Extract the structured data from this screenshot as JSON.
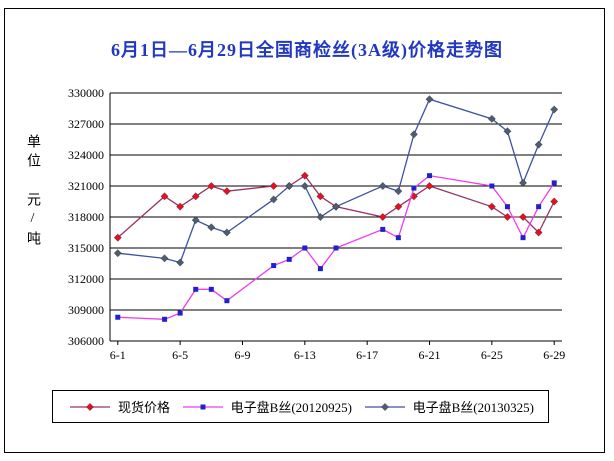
{
  "chart_data": {
    "type": "line",
    "title": "6月1日—6月29日全国商检丝(3A级)价格走势图",
    "title_color": "#2238c0",
    "ylabel": "单位 元/吨",
    "ylim": [
      306000,
      330000
    ],
    "yticks": [
      306000,
      309000,
      312000,
      315000,
      318000,
      321000,
      324000,
      327000,
      330000
    ],
    "xtick_labels": [
      "6-1",
      "6-5",
      "6-9",
      "6-13",
      "6-17",
      "6-21",
      "6-25",
      "6-29"
    ],
    "xtick_days": [
      1,
      5,
      9,
      13,
      17,
      21,
      25,
      29
    ],
    "days_total": 29,
    "grid": true,
    "legend_position": "bottom",
    "days": [
      1,
      4,
      5,
      6,
      7,
      8,
      11,
      12,
      13,
      14,
      15,
      18,
      19,
      20,
      21,
      25,
      26,
      27,
      28,
      29
    ],
    "series": [
      {
        "name": "现货价格",
        "marker": "diamond",
        "marker_color": "#e8101c",
        "line_color": "#993366",
        "values": [
          316000,
          320000,
          319000,
          320000,
          321000,
          320500,
          321000,
          321000,
          322000,
          320000,
          319000,
          318000,
          319000,
          320000,
          321000,
          319000,
          318000,
          318000,
          316500,
          319500
        ]
      },
      {
        "name": "电子盘B丝(20120925)",
        "marker": "square",
        "marker_color": "#2121cc",
        "line_color": "#ee3cee",
        "values": [
          308300,
          308100,
          308700,
          311000,
          311000,
          309900,
          313300,
          313900,
          315000,
          313000,
          315000,
          316800,
          316000,
          320800,
          322000,
          321000,
          319000,
          316000,
          319000,
          321300
        ]
      },
      {
        "name": "电子盘B丝(20130325)",
        "marker": "diamond",
        "marker_color": "#4f5f68",
        "line_color": "#3f51a3",
        "values": [
          314500,
          314000,
          313600,
          317700,
          317000,
          316500,
          319700,
          321000,
          321000,
          318000,
          319000,
          321000,
          320500,
          326000,
          329400,
          327500,
          326300,
          321300,
          325000,
          328400
        ]
      }
    ]
  }
}
